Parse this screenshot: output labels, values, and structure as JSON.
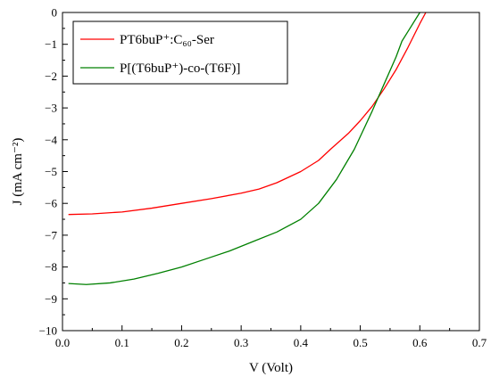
{
  "chart_data": {
    "type": "line",
    "title": "",
    "xlabel": "V (Volt)",
    "ylabel": "J (mA cm⁻²)",
    "xlim": [
      0.0,
      0.7
    ],
    "ylim": [
      -10,
      0
    ],
    "xticks": [
      0.0,
      0.1,
      0.2,
      0.3,
      0.4,
      0.5,
      0.6,
      0.7
    ],
    "xtick_labels": [
      "0.0",
      "0.1",
      "0.2",
      "0.3",
      "0.4",
      "0.5",
      "0.6",
      "0.7"
    ],
    "yticks": [
      0,
      -1,
      -2,
      -3,
      -4,
      -5,
      -6,
      -7,
      -8,
      -9,
      -10
    ],
    "ytick_labels": [
      "0",
      "−1",
      "−2",
      "−3",
      "−4",
      "−5",
      "−6",
      "−7",
      "−8",
      "−9",
      "−10"
    ],
    "grid": false,
    "legend_position": "top-left",
    "series": [
      {
        "name": "PT6buP⁺:C₆₀-Ser",
        "color": "#ff0000",
        "x": [
          0.01,
          0.05,
          0.1,
          0.15,
          0.2,
          0.25,
          0.3,
          0.33,
          0.36,
          0.4,
          0.43,
          0.45,
          0.48,
          0.5,
          0.52,
          0.54,
          0.56,
          0.58,
          0.6,
          0.61
        ],
        "y": [
          -6.35,
          -6.33,
          -6.27,
          -6.15,
          -6.0,
          -5.85,
          -5.68,
          -5.55,
          -5.35,
          -5.0,
          -4.65,
          -4.3,
          -3.8,
          -3.4,
          -2.95,
          -2.4,
          -1.8,
          -1.1,
          -0.35,
          0.0
        ]
      },
      {
        "name": "P[(T6buP⁺)-co-(T6F)]",
        "color": "#008000",
        "x": [
          0.01,
          0.04,
          0.08,
          0.12,
          0.16,
          0.2,
          0.24,
          0.28,
          0.32,
          0.36,
          0.4,
          0.43,
          0.46,
          0.49,
          0.52,
          0.54,
          0.56,
          0.57,
          0.58,
          0.6
        ],
        "y": [
          -8.52,
          -8.55,
          -8.5,
          -8.38,
          -8.2,
          -8.0,
          -7.75,
          -7.5,
          -7.2,
          -6.9,
          -6.5,
          -6.0,
          -5.25,
          -4.3,
          -3.1,
          -2.25,
          -1.4,
          -0.9,
          -0.6,
          0.0
        ]
      }
    ]
  }
}
